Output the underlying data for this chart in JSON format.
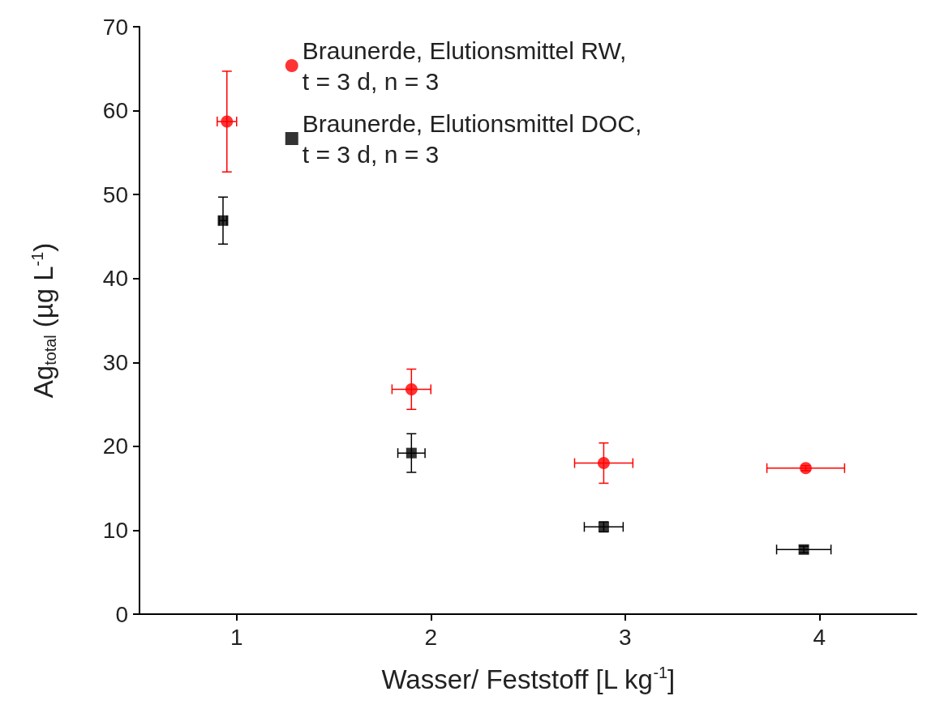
{
  "chart_data": {
    "type": "scatter",
    "xlabel": "Wasser/ Feststoff [L kg$^{-1}$]",
    "ylabel": "Ag$_{total}$ (µg L$^{-1}$)",
    "xlim": [
      0.5,
      4.5
    ],
    "xticks": [
      1,
      2,
      3,
      4
    ],
    "ylim": [
      0,
      70
    ],
    "yticks": [
      0,
      10,
      20,
      30,
      40,
      50,
      60,
      70
    ],
    "grid": false,
    "legend": "top",
    "series": [
      {
        "name": "Braunerde, Elutionsmittel RW,\nt = 3 d, n = 3",
        "color": "#ff0000",
        "marker": "circle",
        "x": [
          0.95,
          1.9,
          2.89,
          3.93
        ],
        "values": [
          58.7,
          26.8,
          18.0,
          17.4
        ],
        "errors": [
          6.0,
          2.4,
          2.4,
          0.3
        ],
        "xerrors": [
          0.05,
          0.1,
          0.15,
          0.2
        ]
      },
      {
        "name": "Braunerde, Elutionsmittel DOC,\nt = 3 d, n = 3",
        "color": "#000000",
        "marker": "square",
        "x": [
          0.93,
          1.9,
          2.89,
          3.92
        ],
        "values": [
          46.9,
          19.2,
          10.4,
          7.7
        ],
        "errors": [
          2.8,
          2.3,
          0.6,
          0.4
        ],
        "xerrors": [
          0.02,
          0.07,
          0.1,
          0.14
        ]
      }
    ]
  }
}
